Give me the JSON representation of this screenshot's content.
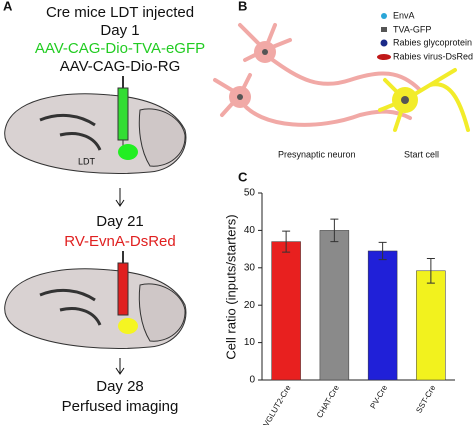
{
  "panel_a": {
    "letter": "A",
    "lines": [
      "Cre mice LDT injected",
      "Day 1",
      "AAV-CAG-Dio-TVA-eGFP",
      "AAV-CAG-Dio-RG"
    ],
    "site_label": "LDT",
    "day21": "Day 21",
    "virus2": "RV-EvnA-DsRed",
    "day28": "Day 28",
    "end": "Perfused imaging"
  },
  "panel_b": {
    "letter": "B",
    "legend": [
      "EnvA",
      "TVA-GFP",
      "Rabies glycoprotein",
      "Rabies virus-DsRed"
    ],
    "presynaptic": "Presynaptic neuron",
    "start": "Start cell"
  },
  "chart_data": {
    "type": "bar",
    "letter": "C",
    "ylabel": "Cell ratio (inputs/starters)",
    "categories": [
      "VGLUT2-Cre",
      "CHAT-Cre",
      "PV-Cre",
      "SST-Cre"
    ],
    "values": [
      37,
      40,
      34.5,
      29.2
    ],
    "errors": [
      2.8,
      3,
      2.3,
      3.3
    ],
    "colors": [
      "#e8201f",
      "#8a8a8a",
      "#2020d8",
      "#f2f21e"
    ],
    "ylim": [
      0,
      50
    ],
    "yticks": [
      0,
      10,
      20,
      30,
      40,
      50
    ]
  }
}
